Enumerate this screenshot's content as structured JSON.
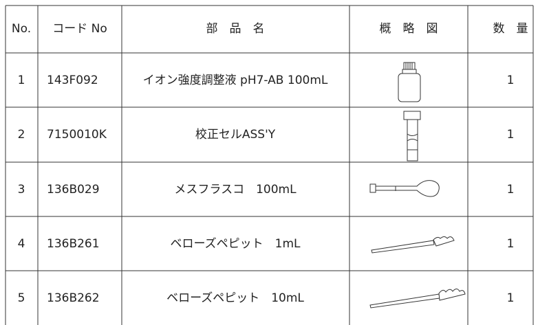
{
  "table": {
    "header": [
      "No.",
      "コード No",
      "部　品　名",
      "概　略　図",
      "数　量"
    ],
    "rows": [
      [
        "1",
        "143F092",
        "イオン強度調整液 pH7-AB 100mL",
        "1"
      ],
      [
        "2",
        "7150010K",
        "校正セルASS'Y",
        "1"
      ],
      [
        "3",
        "136B029",
        "メスフラスコ　100mL",
        "1"
      ],
      [
        "4",
        "136B261",
        "ベローズペピット　1mL",
        "1"
      ],
      [
        "5",
        "136B262",
        "ベローズペピット　10mL",
        "1"
      ]
    ]
  }
}
